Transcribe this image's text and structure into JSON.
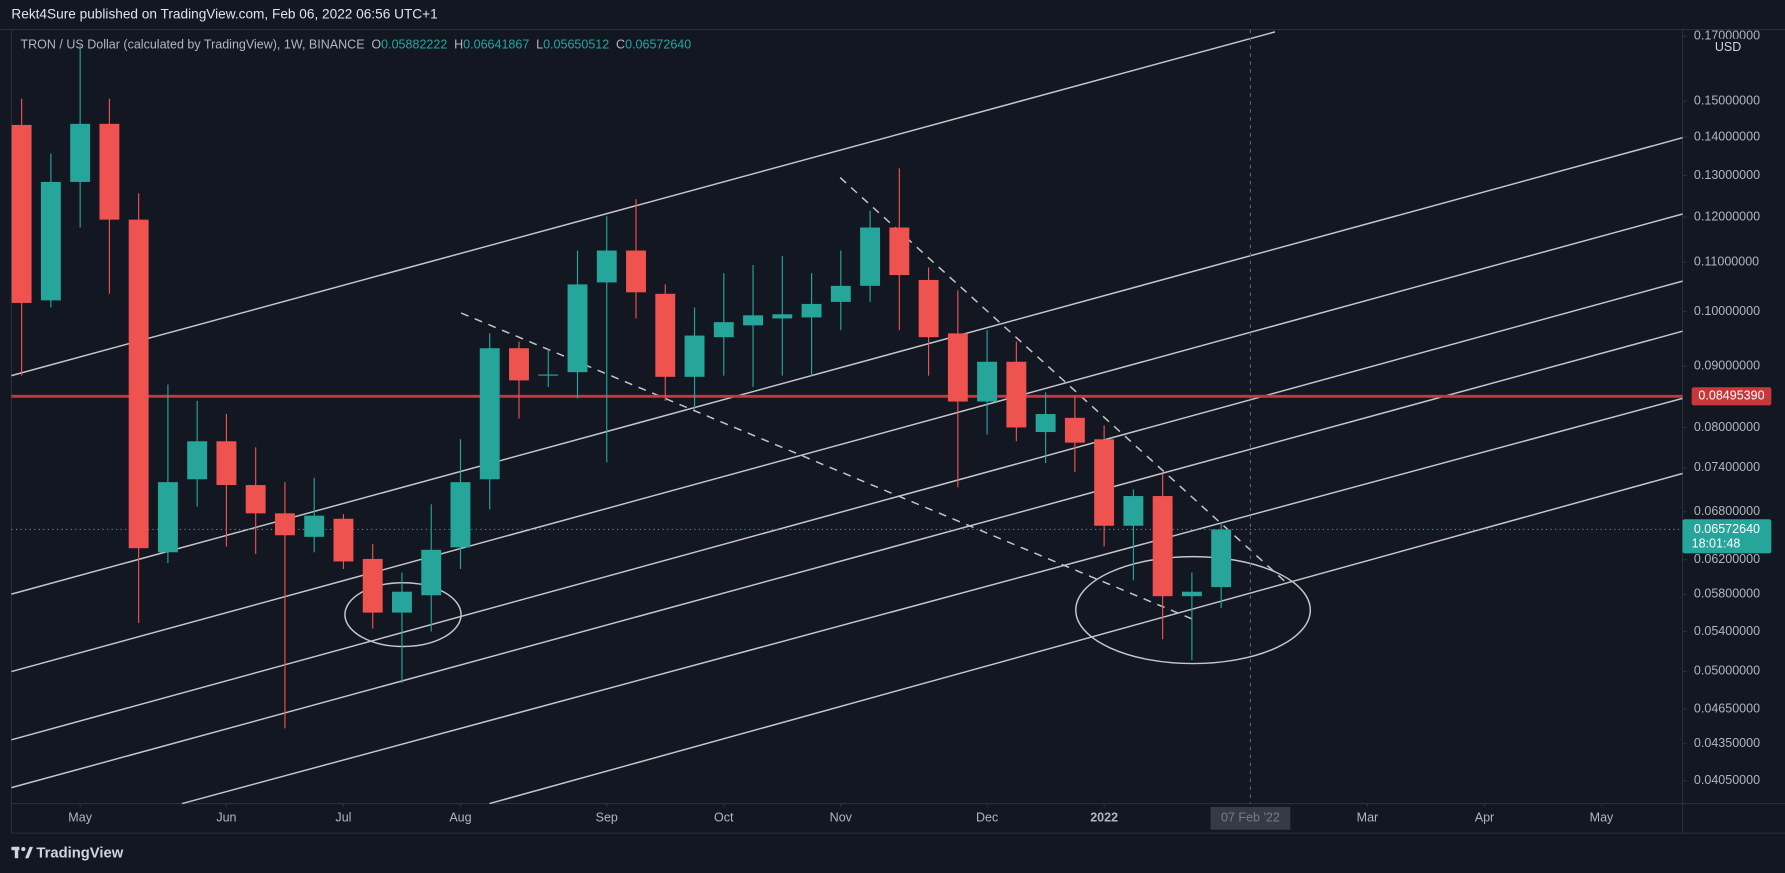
{
  "header": {
    "published": "Rekt4Sure published on TradingView.com, Feb 06, 2022 06:56 UTC+1"
  },
  "chart_data": {
    "type": "candlestick",
    "title": "TRON / US Dollar (calculated by TradingView), 1W, BINANCE",
    "ohlc_legend": [
      {
        "key": "O",
        "text": "0.05882222"
      },
      {
        "key": "H",
        "text": "0.06641867"
      },
      {
        "key": "L",
        "text": "0.05650512"
      },
      {
        "key": "C",
        "text": "0.06572640"
      }
    ],
    "up_color": "#26a69a",
    "down_color": "#ef5350",
    "open": [
      0.1433,
      0.1022,
      0.1284,
      0.1436,
      0.1194,
      0.0629,
      0.0724,
      0.0779,
      0.0716,
      0.0678,
      0.0648,
      0.0671,
      0.0621,
      0.056,
      0.0579,
      0.0635,
      0.0724,
      0.0932,
      0.0884,
      0.089,
      0.1058,
      0.1125,
      0.1035,
      0.0882,
      0.0952,
      0.0974,
      0.0987,
      0.0989,
      0.1019,
      0.1051,
      0.1176,
      0.1063,
      0.0959,
      0.0841,
      0.0908,
      0.0793,
      0.0815,
      0.0782,
      0.0662,
      0.0701,
      0.0578,
      0.05882222
    ],
    "high": [
      0.1507,
      0.1356,
      0.167,
      0.1507,
      0.1256,
      0.0869,
      0.0842,
      0.0821,
      0.077,
      0.072,
      0.0726,
      0.0677,
      0.0639,
      0.0605,
      0.069,
      0.0782,
      0.0959,
      0.0944,
      0.093,
      0.1125,
      0.1202,
      0.1242,
      0.1054,
      0.1008,
      0.1077,
      0.1094,
      0.1113,
      0.1077,
      0.1125,
      0.1215,
      0.1318,
      0.1089,
      0.1042,
      0.0965,
      0.0944,
      0.0856,
      0.085,
      0.0803,
      0.071,
      0.0732,
      0.0605,
      0.06641867
    ],
    "low": [
      0.0884,
      0.1008,
      0.1176,
      0.1035,
      0.0549,
      0.0616,
      0.0687,
      0.0636,
      0.0627,
      0.0448,
      0.0629,
      0.0609,
      0.0543,
      0.0489,
      0.054,
      0.0609,
      0.0683,
      0.0814,
      0.0865,
      0.0846,
      0.0748,
      0.0987,
      0.0842,
      0.0828,
      0.0884,
      0.0865,
      0.0884,
      0.0884,
      0.0965,
      0.1019,
      0.0965,
      0.0884,
      0.0713,
      0.0789,
      0.0779,
      0.0747,
      0.0734,
      0.0636,
      0.0596,
      0.0532,
      0.0511,
      0.05650512
    ],
    "close": [
      0.1017,
      0.1284,
      0.1436,
      0.1194,
      0.0634,
      0.072,
      0.0779,
      0.0716,
      0.0678,
      0.065,
      0.0675,
      0.0618,
      0.056,
      0.0583,
      0.0632,
      0.072,
      0.0932,
      0.0876,
      0.0886,
      0.1054,
      0.1125,
      0.1038,
      0.0882,
      0.0955,
      0.098,
      0.0993,
      0.0995,
      0.1015,
      0.1051,
      0.1176,
      0.1073,
      0.0952,
      0.0841,
      0.0908,
      0.08,
      0.0821,
      0.0777,
      0.0662,
      0.0701,
      0.0578,
      0.0583,
      0.0657264
    ],
    "xlim": [
      -0.35,
      56.77
    ],
    "xticks": [
      {
        "value": 2,
        "label": "May"
      },
      {
        "value": 7,
        "label": "Jun"
      },
      {
        "value": 11,
        "label": "Jul"
      },
      {
        "value": 15,
        "label": "Aug"
      },
      {
        "value": 20,
        "label": "Sep"
      },
      {
        "value": 24,
        "label": "Oct"
      },
      {
        "value": 28,
        "label": "Nov"
      },
      {
        "value": 33,
        "label": "Dec"
      },
      {
        "value": 37,
        "label": "2022",
        "bold": true
      },
      {
        "value": 46,
        "label": "Mar"
      },
      {
        "value": 50,
        "label": "Apr"
      },
      {
        "value": 54,
        "label": "May"
      }
    ],
    "ylim": [
      0.03876,
      0.1722
    ],
    "log_scale": true,
    "y_unit": "USD",
    "yticks": [
      {
        "value": 0.17,
        "label": "0.17000000"
      },
      {
        "value": 0.15,
        "label": "0.15000000"
      },
      {
        "value": 0.14,
        "label": "0.14000000"
      },
      {
        "value": 0.13,
        "label": "0.13000000"
      },
      {
        "value": 0.12,
        "label": "0.12000000"
      },
      {
        "value": 0.11,
        "label": "0.11000000"
      },
      {
        "value": 0.1,
        "label": "0.10000000"
      },
      {
        "value": 0.09,
        "label": "0.09000000"
      },
      {
        "value": 0.08,
        "label": "0.08000000"
      },
      {
        "value": 0.074,
        "label": "0.07400000"
      },
      {
        "value": 0.068,
        "label": "0.06800000"
      },
      {
        "value": 0.062,
        "label": "0.06200000"
      },
      {
        "value": 0.058,
        "label": "0.05800000"
      },
      {
        "value": 0.054,
        "label": "0.05400000"
      },
      {
        "value": 0.05,
        "label": "0.05000000"
      },
      {
        "value": 0.0465,
        "label": "0.04650000"
      },
      {
        "value": 0.0435,
        "label": "0.04350000"
      },
      {
        "value": 0.0405,
        "label": "0.04050000"
      }
    ],
    "price_line": {
      "value": 0.0849539,
      "label": "0.08495390",
      "color": "#c8383b"
    },
    "last_price": {
      "value": 0.0657264,
      "label": "0.06572640",
      "countdown": "18:01:48"
    },
    "crosshair": {
      "x": 42,
      "label": "07 Feb '22"
    }
  },
  "footer": {
    "brand": "TradingView"
  }
}
